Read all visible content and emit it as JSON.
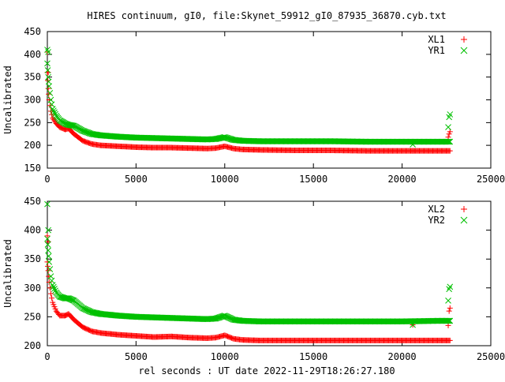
{
  "title": "HIRES continuum, gI0, file:Skynet_59912_gI0_87935_36870.cyb.txt",
  "xlabel": "rel seconds : UT date 2022-11-29T18:26:27.180",
  "colors": {
    "red": "#ff0000",
    "green": "#00c000"
  },
  "chart_data": [
    {
      "type": "scatter",
      "ylabel": "Uncalibrated",
      "xlim": [
        0,
        25000
      ],
      "ylim": [
        150,
        450
      ],
      "xticks": [
        "0",
        "5000",
        "10000",
        "15000",
        "20000",
        "25000"
      ],
      "yticks": [
        "150",
        "200",
        "250",
        "300",
        "350",
        "400",
        "450"
      ],
      "legend_position": "top-right",
      "series": [
        {
          "name": "XL1",
          "marker": "+",
          "color": "#ff0000",
          "x": [
            0,
            50,
            100,
            200,
            300,
            500,
            700,
            1000,
            1200,
            1500,
            2000,
            2500,
            3000,
            4000,
            5000,
            6000,
            7000,
            8000,
            9000,
            9500,
            10000,
            10500,
            11000,
            12000,
            14000,
            16000,
            18000,
            20000,
            22000,
            22700
          ],
          "y": [
            360,
            325,
            300,
            275,
            260,
            248,
            240,
            235,
            237,
            225,
            210,
            203,
            200,
            198,
            196,
            195,
            195,
            194,
            193,
            194,
            198,
            193,
            191,
            190,
            189,
            189,
            188,
            188,
            188,
            188
          ],
          "outliers_x": [
            0,
            50,
            20600,
            22600,
            22650,
            22700
          ],
          "outliers_y": [
            405,
            360,
            188,
            218,
            225,
            230
          ]
        },
        {
          "name": "YR1",
          "marker": "x",
          "color": "#00c000",
          "x": [
            0,
            50,
            100,
            200,
            300,
            500,
            700,
            1000,
            1200,
            1500,
            2000,
            2500,
            3000,
            4000,
            5000,
            6000,
            7000,
            8000,
            9000,
            9500,
            10000,
            10500,
            11000,
            12000,
            14000,
            16000,
            18000,
            20000,
            22000,
            22700
          ],
          "y": [
            380,
            350,
            330,
            300,
            280,
            265,
            255,
            248,
            245,
            243,
            232,
            225,
            222,
            219,
            217,
            216,
            215,
            214,
            213,
            214,
            218,
            212,
            210,
            209,
            209,
            209,
            208,
            208,
            208,
            208
          ],
          "outliers_x": [
            0,
            50,
            20600,
            22600,
            22650,
            22700
          ],
          "outliers_y": [
            410,
            405,
            202,
            240,
            262,
            268
          ]
        }
      ]
    },
    {
      "type": "scatter",
      "ylabel": "Uncalibrated",
      "xlim": [
        0,
        25000
      ],
      "ylim": [
        200,
        450
      ],
      "xticks": [
        "0",
        "5000",
        "10000",
        "15000",
        "20000",
        "25000"
      ],
      "yticks": [
        "200",
        "250",
        "300",
        "350",
        "400",
        "450"
      ],
      "legend_position": "top-right",
      "series": [
        {
          "name": "XL2",
          "marker": "+",
          "color": "#ff0000",
          "x": [
            0,
            50,
            100,
            200,
            300,
            500,
            700,
            1000,
            1200,
            1500,
            2000,
            2500,
            3000,
            4000,
            5000,
            6000,
            7000,
            8000,
            9000,
            9500,
            10000,
            10500,
            11000,
            12000,
            14000,
            16000,
            18000,
            20000,
            22000,
            22700
          ],
          "y": [
            345,
            330,
            310,
            290,
            275,
            260,
            252,
            252,
            255,
            245,
            232,
            225,
            222,
            219,
            217,
            215,
            216,
            214,
            213,
            214,
            218,
            212,
            210,
            209,
            209,
            209,
            209,
            209,
            209,
            209
          ],
          "outliers_x": [
            0,
            50,
            20600,
            22600,
            22650,
            22700
          ],
          "outliers_y": [
            390,
            380,
            236,
            235,
            260,
            265
          ]
        },
        {
          "name": "YR2",
          "marker": "x",
          "color": "#00c000",
          "x": [
            0,
            50,
            100,
            200,
            300,
            500,
            700,
            1000,
            1200,
            1500,
            2000,
            2500,
            3000,
            4000,
            5000,
            6000,
            7000,
            8000,
            9000,
            9500,
            10000,
            10500,
            11000,
            12000,
            14000,
            16000,
            18000,
            20000,
            22000,
            22700
          ],
          "y": [
            385,
            365,
            345,
            320,
            305,
            292,
            285,
            282,
            282,
            278,
            265,
            258,
            255,
            252,
            250,
            249,
            248,
            247,
            246,
            247,
            252,
            245,
            243,
            242,
            242,
            242,
            242,
            242,
            243,
            243
          ],
          "outliers_x": [
            0,
            50,
            20600,
            22600,
            22650,
            22700
          ],
          "outliers_y": [
            445,
            400,
            236,
            278,
            298,
            302
          ]
        }
      ]
    }
  ]
}
